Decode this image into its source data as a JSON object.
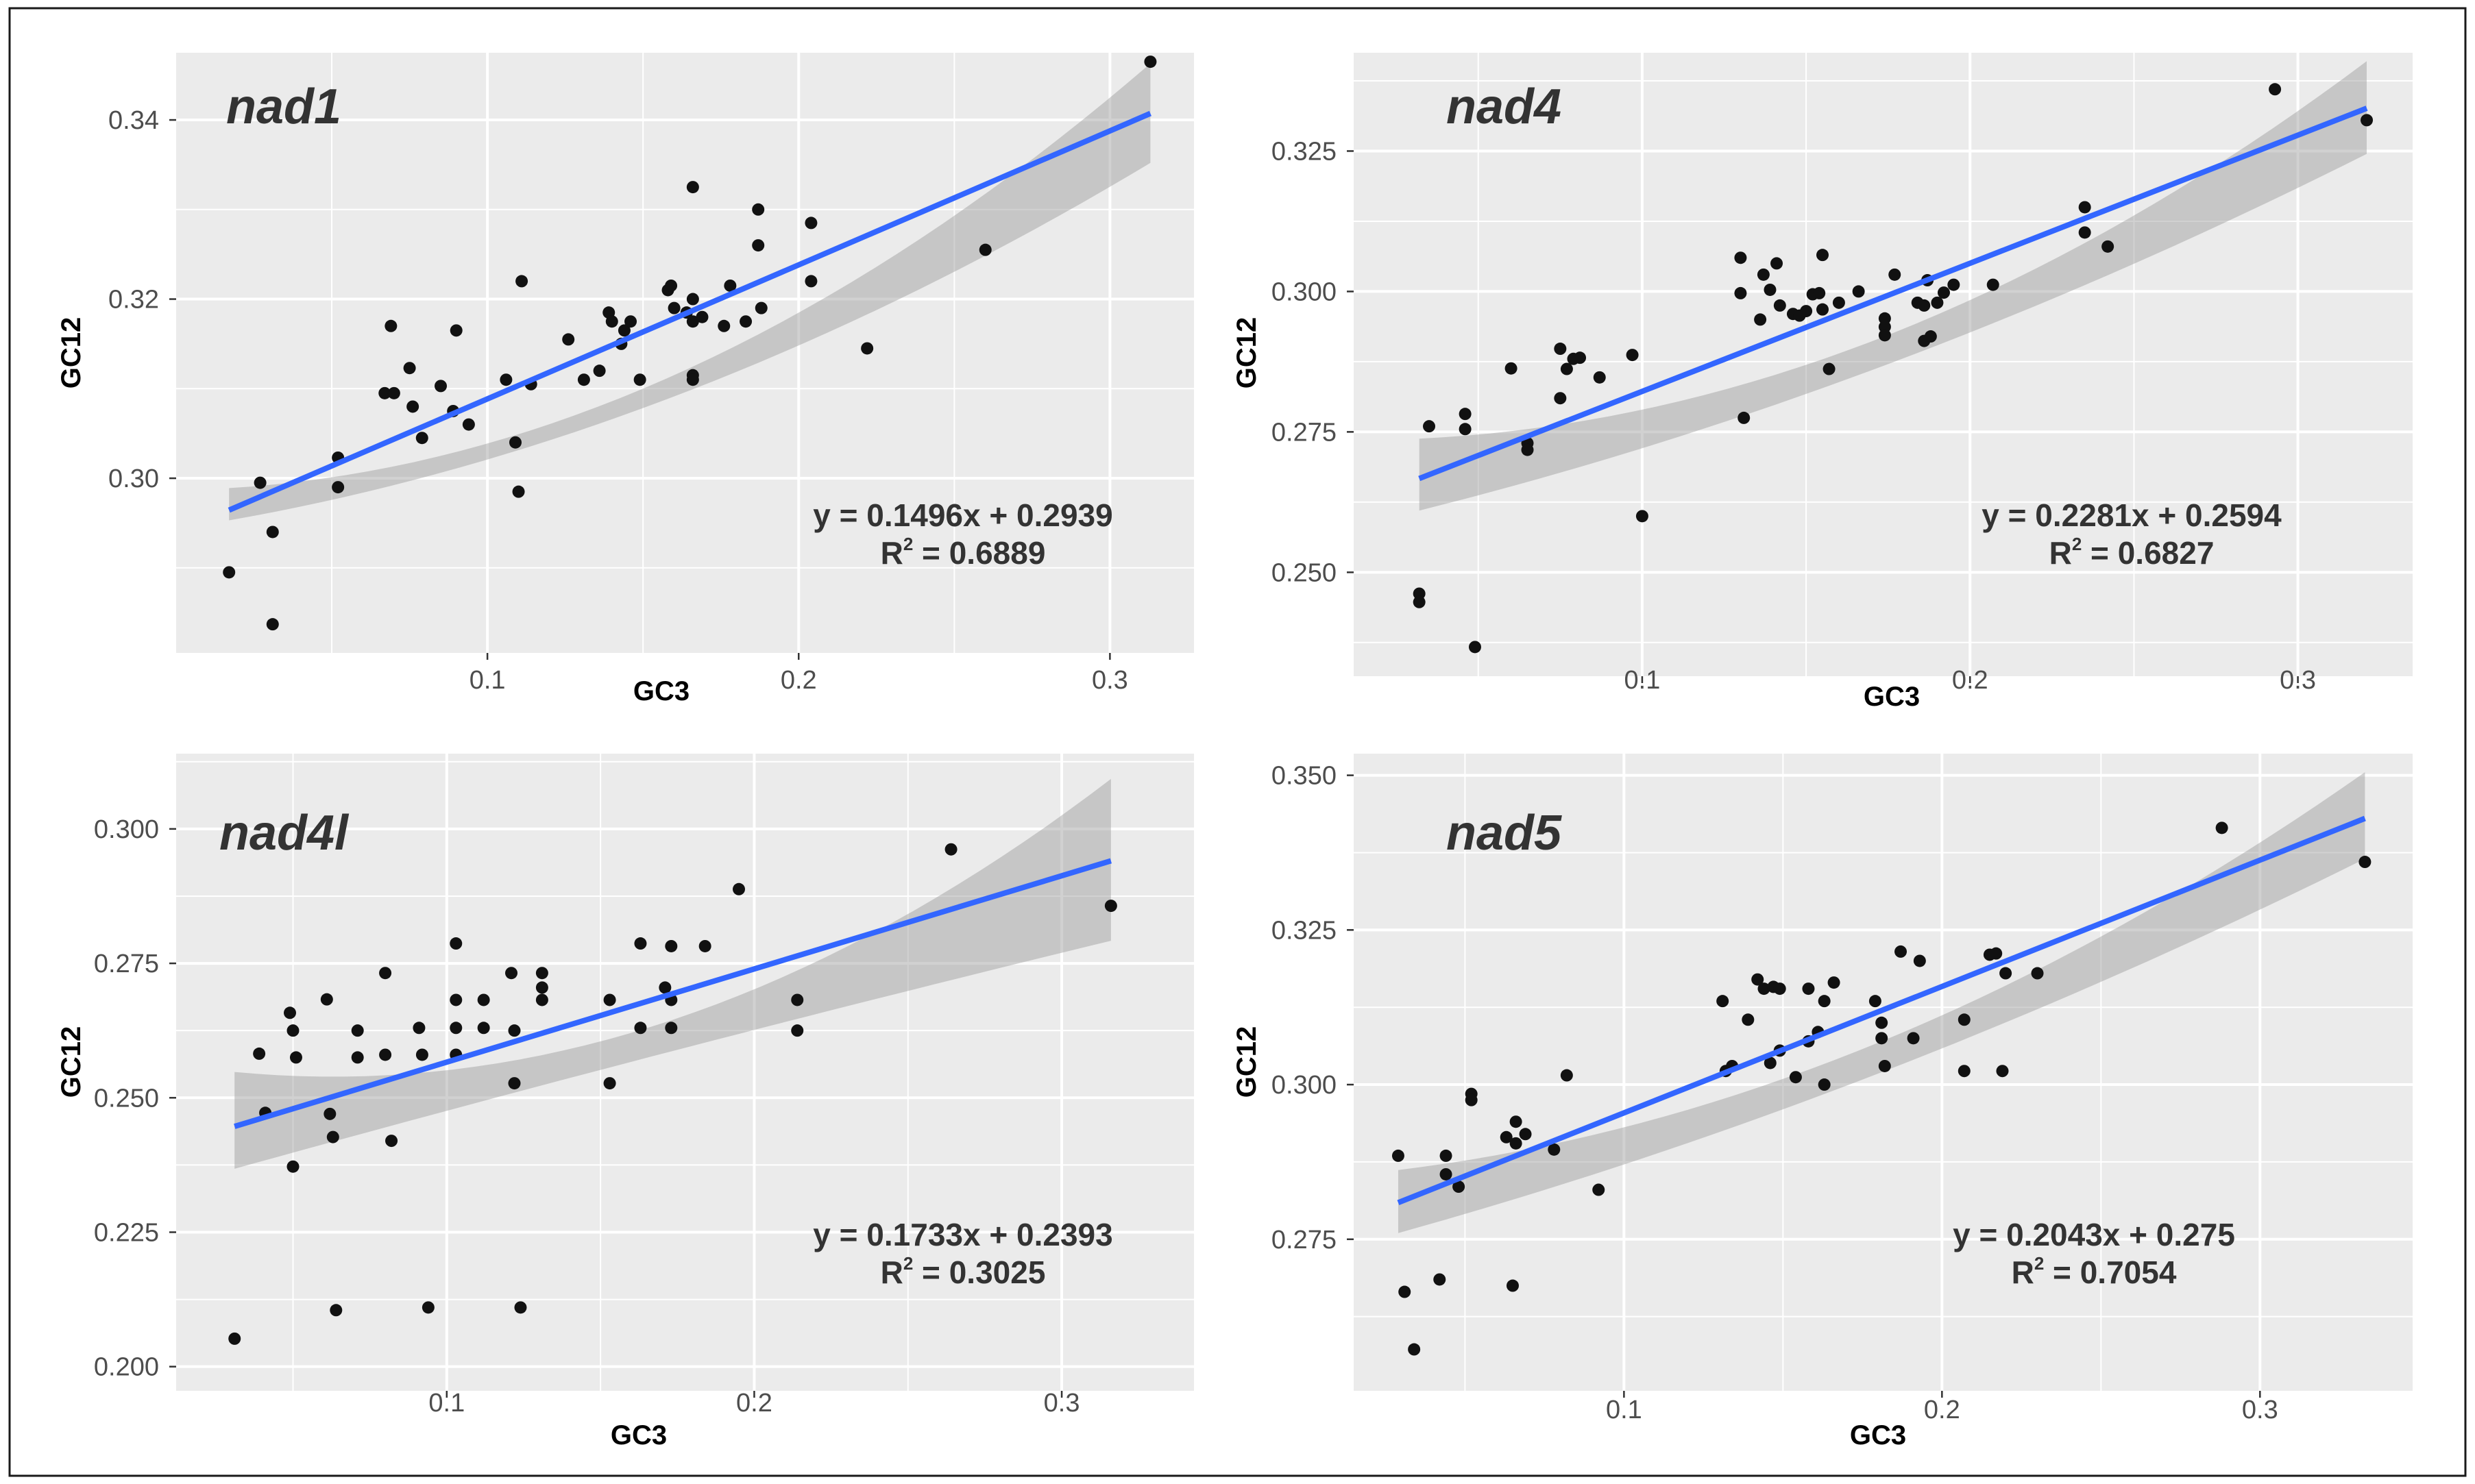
{
  "chart_data": [
    {
      "type": "scatter",
      "title": "nad1",
      "xlabel": "GC3",
      "ylabel": "GC12",
      "xlim": [
        0.0,
        0.327
      ],
      "ylim": [
        0.2805,
        0.3475
      ],
      "xticks": [
        0.1,
        0.2,
        0.3
      ],
      "xtick_labels": [
        "0.1",
        "0.2",
        "0.3"
      ],
      "yticks": [
        0.3,
        0.32,
        0.34
      ],
      "ytick_labels": [
        "0.30",
        "0.32",
        "0.34"
      ],
      "fit": {
        "slope": 0.1496,
        "intercept": 0.2939,
        "x_range": [
          0.017,
          0.313
        ]
      },
      "ci": {
        "left": [
          0.2953,
          0.2989
        ],
        "center": [
          0.3098,
          0.3123
        ],
        "right": [
          0.3352,
          0.3463
        ]
      },
      "equation": "y = 0.1496x + 0.2939",
      "r2_prefix": "R",
      "r2_sup": "2",
      "r2_value": "= 0.6889",
      "points": [
        [
          0.017,
          0.2895
        ],
        [
          0.027,
          0.2995
        ],
        [
          0.031,
          0.294
        ],
        [
          0.031,
          0.2837
        ],
        [
          0.052,
          0.3023
        ],
        [
          0.052,
          0.299
        ],
        [
          0.067,
          0.3095
        ],
        [
          0.069,
          0.317
        ],
        [
          0.07,
          0.3095
        ],
        [
          0.075,
          0.3123
        ],
        [
          0.076,
          0.308
        ],
        [
          0.079,
          0.3045
        ],
        [
          0.085,
          0.3103
        ],
        [
          0.089,
          0.3075
        ],
        [
          0.09,
          0.3165
        ],
        [
          0.094,
          0.306
        ],
        [
          0.106,
          0.311
        ],
        [
          0.109,
          0.304
        ],
        [
          0.11,
          0.2985
        ],
        [
          0.111,
          0.322
        ],
        [
          0.114,
          0.3105
        ],
        [
          0.126,
          0.3155
        ],
        [
          0.131,
          0.311
        ],
        [
          0.136,
          0.312
        ],
        [
          0.139,
          0.3185
        ],
        [
          0.14,
          0.3175
        ],
        [
          0.143,
          0.315
        ],
        [
          0.144,
          0.3165
        ],
        [
          0.146,
          0.3175
        ],
        [
          0.149,
          0.311
        ],
        [
          0.158,
          0.321
        ],
        [
          0.159,
          0.3215
        ],
        [
          0.16,
          0.319
        ],
        [
          0.164,
          0.3185
        ],
        [
          0.166,
          0.3325
        ],
        [
          0.166,
          0.32
        ],
        [
          0.166,
          0.3175
        ],
        [
          0.166,
          0.3115
        ],
        [
          0.166,
          0.311
        ],
        [
          0.169,
          0.318
        ],
        [
          0.176,
          0.317
        ],
        [
          0.178,
          0.3215
        ],
        [
          0.183,
          0.3175
        ],
        [
          0.187,
          0.33
        ],
        [
          0.187,
          0.326
        ],
        [
          0.188,
          0.319
        ],
        [
          0.204,
          0.3285
        ],
        [
          0.204,
          0.322
        ],
        [
          0.222,
          0.3145
        ],
        [
          0.26,
          0.3255
        ],
        [
          0.313,
          0.3465
        ]
      ]
    },
    {
      "type": "scatter",
      "title": "nad4",
      "xlabel": "GC3",
      "ylabel": "GC12",
      "xlim": [
        0.012,
        0.335
      ],
      "ylim": [
        0.2315,
        0.3425
      ],
      "xticks": [
        0.1,
        0.2,
        0.3
      ],
      "xtick_labels": [
        "0.1",
        "0.2",
        "0.3"
      ],
      "yticks": [
        0.25,
        0.275,
        0.3,
        0.325
      ],
      "ytick_labels": [
        "0.250",
        "0.275",
        "0.300",
        "0.325"
      ],
      "fit": {
        "slope": 0.2281,
        "intercept": 0.2594,
        "x_range": [
          0.032,
          0.321
        ]
      },
      "ci": {
        "left": [
          0.261,
          0.2738
        ],
        "center": [
          0.2874,
          0.2926
        ],
        "right": [
          0.3245,
          0.341
        ]
      },
      "equation": "y = 0.2281x + 0.2594",
      "r2_prefix": "R",
      "r2_sup": "2",
      "r2_value": "= 0.6827",
      "points": [
        [
          0.032,
          0.2462
        ],
        [
          0.032,
          0.2447
        ],
        [
          0.035,
          0.276
        ],
        [
          0.046,
          0.2782
        ],
        [
          0.046,
          0.2755
        ],
        [
          0.049,
          0.2367
        ],
        [
          0.06,
          0.2863
        ],
        [
          0.065,
          0.273
        ],
        [
          0.065,
          0.2718
        ],
        [
          0.075,
          0.2898
        ],
        [
          0.075,
          0.281
        ],
        [
          0.077,
          0.2862
        ],
        [
          0.079,
          0.288
        ],
        [
          0.081,
          0.2882
        ],
        [
          0.087,
          0.2847
        ],
        [
          0.097,
          0.2887
        ],
        [
          0.1,
          0.26
        ],
        [
          0.13,
          0.306
        ],
        [
          0.13,
          0.2997
        ],
        [
          0.131,
          0.2775
        ],
        [
          0.136,
          0.295
        ],
        [
          0.137,
          0.303
        ],
        [
          0.139,
          0.3003
        ],
        [
          0.141,
          0.305
        ],
        [
          0.142,
          0.2975
        ],
        [
          0.146,
          0.296
        ],
        [
          0.148,
          0.2957
        ],
        [
          0.15,
          0.2965
        ],
        [
          0.152,
          0.2995
        ],
        [
          0.154,
          0.2997
        ],
        [
          0.155,
          0.3065
        ],
        [
          0.155,
          0.2968
        ],
        [
          0.157,
          0.2862
        ],
        [
          0.16,
          0.298
        ],
        [
          0.166,
          0.3
        ],
        [
          0.174,
          0.2952
        ],
        [
          0.174,
          0.2937
        ],
        [
          0.174,
          0.2922
        ],
        [
          0.177,
          0.303
        ],
        [
          0.184,
          0.298
        ],
        [
          0.186,
          0.2975
        ],
        [
          0.186,
          0.2912
        ],
        [
          0.187,
          0.302
        ],
        [
          0.188,
          0.292
        ],
        [
          0.19,
          0.298
        ],
        [
          0.192,
          0.2998
        ],
        [
          0.195,
          0.3012
        ],
        [
          0.207,
          0.3012
        ],
        [
          0.235,
          0.315
        ],
        [
          0.235,
          0.3105
        ],
        [
          0.242,
          0.308
        ],
        [
          0.293,
          0.336
        ],
        [
          0.321,
          0.3305
        ]
      ]
    },
    {
      "type": "scatter",
      "title": "nad4l",
      "xlabel": "GC3",
      "ylabel": "GC12",
      "xlim": [
        0.012,
        0.343
      ],
      "ylim": [
        0.1955,
        0.314
      ],
      "xticks": [
        0.1,
        0.2,
        0.3
      ],
      "xtick_labels": [
        "0.1",
        "0.2",
        "0.3"
      ],
      "yticks": [
        0.2,
        0.225,
        0.25,
        0.275,
        0.3
      ],
      "ytick_labels": [
        "0.200",
        "0.225",
        "0.250",
        "0.275",
        "0.300"
      ],
      "fit": {
        "slope": 0.1733,
        "intercept": 0.2393,
        "x_range": [
          0.031,
          0.316
        ]
      },
      "ci": {
        "left": [
          0.2368,
          0.2548
        ],
        "center": [
          0.2587,
          0.2645
        ],
        "right": [
          0.2792,
          0.3093
        ]
      },
      "equation": "y = 0.1733x + 0.2393",
      "r2_prefix": "R",
      "r2_sup": "2",
      "r2_value": "= 0.3025",
      "points": [
        [
          0.031,
          0.2052
        ],
        [
          0.039,
          0.2582
        ],
        [
          0.041,
          0.2472
        ],
        [
          0.049,
          0.2658
        ],
        [
          0.05,
          0.2625
        ],
        [
          0.051,
          0.2575
        ],
        [
          0.05,
          0.2372
        ],
        [
          0.061,
          0.2683
        ],
        [
          0.062,
          0.247
        ],
        [
          0.063,
          0.2427
        ],
        [
          0.064,
          0.2105
        ],
        [
          0.071,
          0.2625
        ],
        [
          0.071,
          0.2575
        ],
        [
          0.08,
          0.2732
        ],
        [
          0.08,
          0.258
        ],
        [
          0.082,
          0.242
        ],
        [
          0.091,
          0.263
        ],
        [
          0.092,
          0.258
        ],
        [
          0.094,
          0.211
        ],
        [
          0.103,
          0.2787
        ],
        [
          0.103,
          0.2682
        ],
        [
          0.103,
          0.263
        ],
        [
          0.103,
          0.258
        ],
        [
          0.112,
          0.2682
        ],
        [
          0.112,
          0.263
        ],
        [
          0.121,
          0.2732
        ],
        [
          0.122,
          0.2625
        ],
        [
          0.122,
          0.2527
        ],
        [
          0.124,
          0.211
        ],
        [
          0.131,
          0.2732
        ],
        [
          0.131,
          0.2705
        ],
        [
          0.131,
          0.2682
        ],
        [
          0.153,
          0.2682
        ],
        [
          0.153,
          0.2527
        ],
        [
          0.163,
          0.2787
        ],
        [
          0.163,
          0.263
        ],
        [
          0.171,
          0.2705
        ],
        [
          0.173,
          0.2782
        ],
        [
          0.173,
          0.2682
        ],
        [
          0.173,
          0.263
        ],
        [
          0.184,
          0.2782
        ],
        [
          0.195,
          0.2888
        ],
        [
          0.214,
          0.2682
        ],
        [
          0.214,
          0.2625
        ],
        [
          0.264,
          0.2962
        ],
        [
          0.316,
          0.2857
        ]
      ]
    },
    {
      "type": "scatter",
      "title": "nad5",
      "xlabel": "GC3",
      "ylabel": "GC12",
      "xlim": [
        0.015,
        0.348
      ],
      "ylim": [
        0.2505,
        0.3535
      ],
      "xticks": [
        0.1,
        0.2,
        0.3
      ],
      "xtick_labels": [
        "0.1",
        "0.2",
        "0.3"
      ],
      "yticks": [
        0.275,
        0.3,
        0.325,
        0.35
      ],
      "ytick_labels": [
        "0.275",
        "0.300",
        "0.325",
        "0.350"
      ],
      "fit": {
        "slope": 0.2043,
        "intercept": 0.275,
        "x_range": [
          0.029,
          0.333
        ]
      },
      "ci": {
        "left": [
          0.276,
          0.2862
        ],
        "center": [
          0.302,
          0.307
        ],
        "right": [
          0.3365,
          0.3505
        ]
      },
      "equation": "y = 0.2043x + 0.275",
      "r2_prefix": "R",
      "r2_sup": "2",
      "r2_value": "= 0.7054",
      "points": [
        [
          0.029,
          0.2885
        ],
        [
          0.031,
          0.2665
        ],
        [
          0.034,
          0.2572
        ],
        [
          0.042,
          0.2685
        ],
        [
          0.044,
          0.2885
        ],
        [
          0.044,
          0.2855
        ],
        [
          0.048,
          0.2835
        ],
        [
          0.052,
          0.2985
        ],
        [
          0.052,
          0.2975
        ],
        [
          0.063,
          0.2915
        ],
        [
          0.065,
          0.2675
        ],
        [
          0.066,
          0.294
        ],
        [
          0.066,
          0.2905
        ],
        [
          0.069,
          0.292
        ],
        [
          0.078,
          0.2895
        ],
        [
          0.082,
          0.3015
        ],
        [
          0.092,
          0.283
        ],
        [
          0.131,
          0.3135
        ],
        [
          0.132,
          0.3022
        ],
        [
          0.134,
          0.303
        ],
        [
          0.139,
          0.3105
        ],
        [
          0.142,
          0.317
        ],
        [
          0.144,
          0.3155
        ],
        [
          0.146,
          0.3035
        ],
        [
          0.147,
          0.3158
        ],
        [
          0.149,
          0.3155
        ],
        [
          0.149,
          0.3055
        ],
        [
          0.154,
          0.3012
        ],
        [
          0.158,
          0.3155
        ],
        [
          0.158,
          0.307
        ],
        [
          0.161,
          0.3085
        ],
        [
          0.163,
          0.3
        ],
        [
          0.163,
          0.3135
        ],
        [
          0.166,
          0.3165
        ],
        [
          0.179,
          0.3135
        ],
        [
          0.181,
          0.31
        ],
        [
          0.181,
          0.3075
        ],
        [
          0.182,
          0.303
        ],
        [
          0.187,
          0.3215
        ],
        [
          0.191,
          0.3075
        ],
        [
          0.193,
          0.32
        ],
        [
          0.207,
          0.3105
        ],
        [
          0.207,
          0.3022
        ],
        [
          0.215,
          0.321
        ],
        [
          0.217,
          0.3212
        ],
        [
          0.219,
          0.3022
        ],
        [
          0.22,
          0.318
        ],
        [
          0.23,
          0.318
        ],
        [
          0.288,
          0.3415
        ],
        [
          0.333,
          0.336
        ]
      ]
    }
  ]
}
